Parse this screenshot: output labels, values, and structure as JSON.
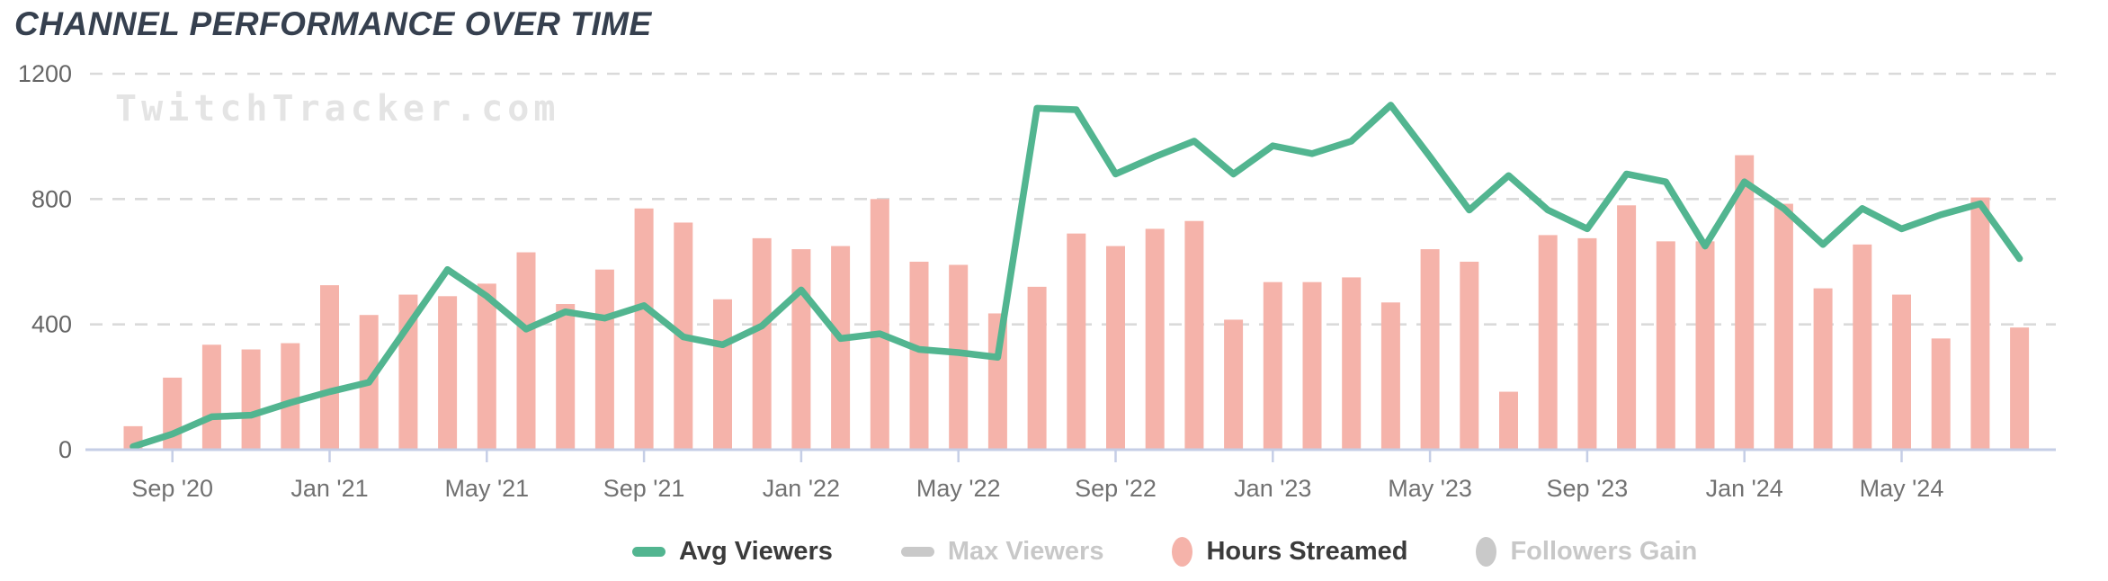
{
  "title": "CHANNEL PERFORMANCE OVER TIME",
  "watermark": "TwitchTracker.com",
  "legend": {
    "items": [
      {
        "label": "Avg Viewers",
        "marker": "dash",
        "color": "#52b590",
        "active": true
      },
      {
        "label": "Max Viewers",
        "marker": "dash",
        "color": "#c9c9c9",
        "active": false
      },
      {
        "label": "Hours Streamed",
        "marker": "oval",
        "color": "#f5b3aa",
        "active": true
      },
      {
        "label": "Followers Gain",
        "marker": "oval",
        "color": "#c9c9c9",
        "active": false
      }
    ]
  },
  "y_axis": {
    "tick_labels": [
      "1200",
      "800",
      "400",
      "0"
    ]
  },
  "x_axis": {
    "tick_labels": [
      "Sep '20",
      "Jan '21",
      "May '21",
      "Sep '21",
      "Jan '22",
      "May '22",
      "Sep '22",
      "Jan '23",
      "May '23",
      "Sep '23",
      "Jan '24",
      "May '24"
    ]
  },
  "colors": {
    "line_green": "#52b590",
    "bar_salmon": "#f5b3aa",
    "grid": "#dadada",
    "axis": "#c5cee6",
    "y_label": "#666666",
    "x_label": "#717171",
    "title": "#36404f",
    "watermark": "#e4e4e4",
    "legend_active_text": "#3b3b3b",
    "legend_inactive_text": "#c8c8c8"
  },
  "chart_data": {
    "type": "combo",
    "title": "CHANNEL PERFORMANCE OVER TIME",
    "ylim": [
      0,
      1200
    ],
    "y_ticks": [
      0,
      400,
      800,
      1200
    ],
    "grid": "horizontal-dashed",
    "legend_position": "bottom",
    "categories": [
      "Aug '20",
      "Sep '20",
      "Oct '20",
      "Nov '20",
      "Dec '20",
      "Jan '21",
      "Feb '21",
      "Mar '21",
      "Apr '21",
      "May '21",
      "Jun '21",
      "Jul '21",
      "Aug '21",
      "Sep '21",
      "Oct '21",
      "Nov '21",
      "Dec '21",
      "Jan '22",
      "Feb '22",
      "Mar '22",
      "Apr '22",
      "May '22",
      "Jun '22",
      "Jul '22",
      "Aug '22",
      "Sep '22",
      "Oct '22",
      "Nov '22",
      "Dec '22",
      "Jan '23",
      "Feb '23",
      "Mar '23",
      "Apr '23",
      "May '23",
      "Jun '23",
      "Jul '23",
      "Aug '23",
      "Sep '23",
      "Oct '23",
      "Nov '23",
      "Dec '23",
      "Jan '24",
      "Feb '24",
      "Mar '24",
      "Apr '24",
      "May '24",
      "Jun '24",
      "Jul '24",
      "Aug '24"
    ],
    "series": [
      {
        "name": "Avg Viewers",
        "type": "line",
        "color": "#52b590",
        "hidden": false,
        "values": [
          10,
          50,
          105,
          110,
          150,
          185,
          215,
          395,
          575,
          490,
          385,
          440,
          420,
          460,
          360,
          335,
          395,
          510,
          355,
          370,
          320,
          310,
          295,
          1090,
          1085,
          880,
          935,
          985,
          880,
          970,
          945,
          985,
          1100,
          935,
          765,
          875,
          765,
          705,
          880,
          855,
          650,
          855,
          770,
          655,
          770,
          705,
          750,
          785,
          610
        ]
      },
      {
        "name": "Hours Streamed",
        "type": "bar",
        "color": "#f5b3aa",
        "hidden": false,
        "values": [
          75,
          230,
          335,
          320,
          340,
          525,
          430,
          495,
          490,
          530,
          630,
          465,
          575,
          770,
          725,
          480,
          675,
          640,
          650,
          800,
          600,
          590,
          435,
          520,
          690,
          650,
          705,
          730,
          415,
          535,
          535,
          550,
          470,
          640,
          600,
          185,
          685,
          675,
          780,
          665,
          665,
          940,
          785,
          515,
          655,
          495,
          355,
          805,
          390
        ]
      },
      {
        "name": "Max Viewers",
        "type": "line",
        "color": "#c9c9c9",
        "hidden": true,
        "values": []
      },
      {
        "name": "Followers Gain",
        "type": "line",
        "color": "#c9c9c9",
        "hidden": true,
        "values": []
      }
    ]
  }
}
